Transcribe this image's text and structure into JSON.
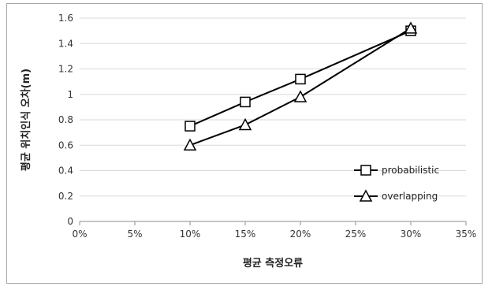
{
  "chart_data": {
    "type": "line",
    "title": "",
    "xlabel": "평균 측정오류",
    "ylabel": "평균 위치인식 오차(m)",
    "x_ticks": [
      "0%",
      "5%",
      "10%",
      "15%",
      "20%",
      "25%",
      "30%",
      "35%"
    ],
    "y_ticks": [
      "0",
      "0.2",
      "0.4",
      "0.6",
      "0.8",
      "1",
      "1.2",
      "1.4",
      "1.6"
    ],
    "xlim": [
      0,
      35
    ],
    "ylim": [
      0,
      1.6
    ],
    "grid": "horizontal",
    "legend_position": "right",
    "series": [
      {
        "name": "probabilistic",
        "marker": "square",
        "color": "#000000",
        "x": [
          10,
          15,
          20,
          30
        ],
        "values": [
          0.75,
          0.94,
          1.12,
          1.5
        ]
      },
      {
        "name": "overlapping",
        "marker": "triangle",
        "color": "#000000",
        "x": [
          10,
          15,
          20,
          30
        ],
        "values": [
          0.6,
          0.76,
          0.98,
          1.52
        ]
      }
    ]
  }
}
